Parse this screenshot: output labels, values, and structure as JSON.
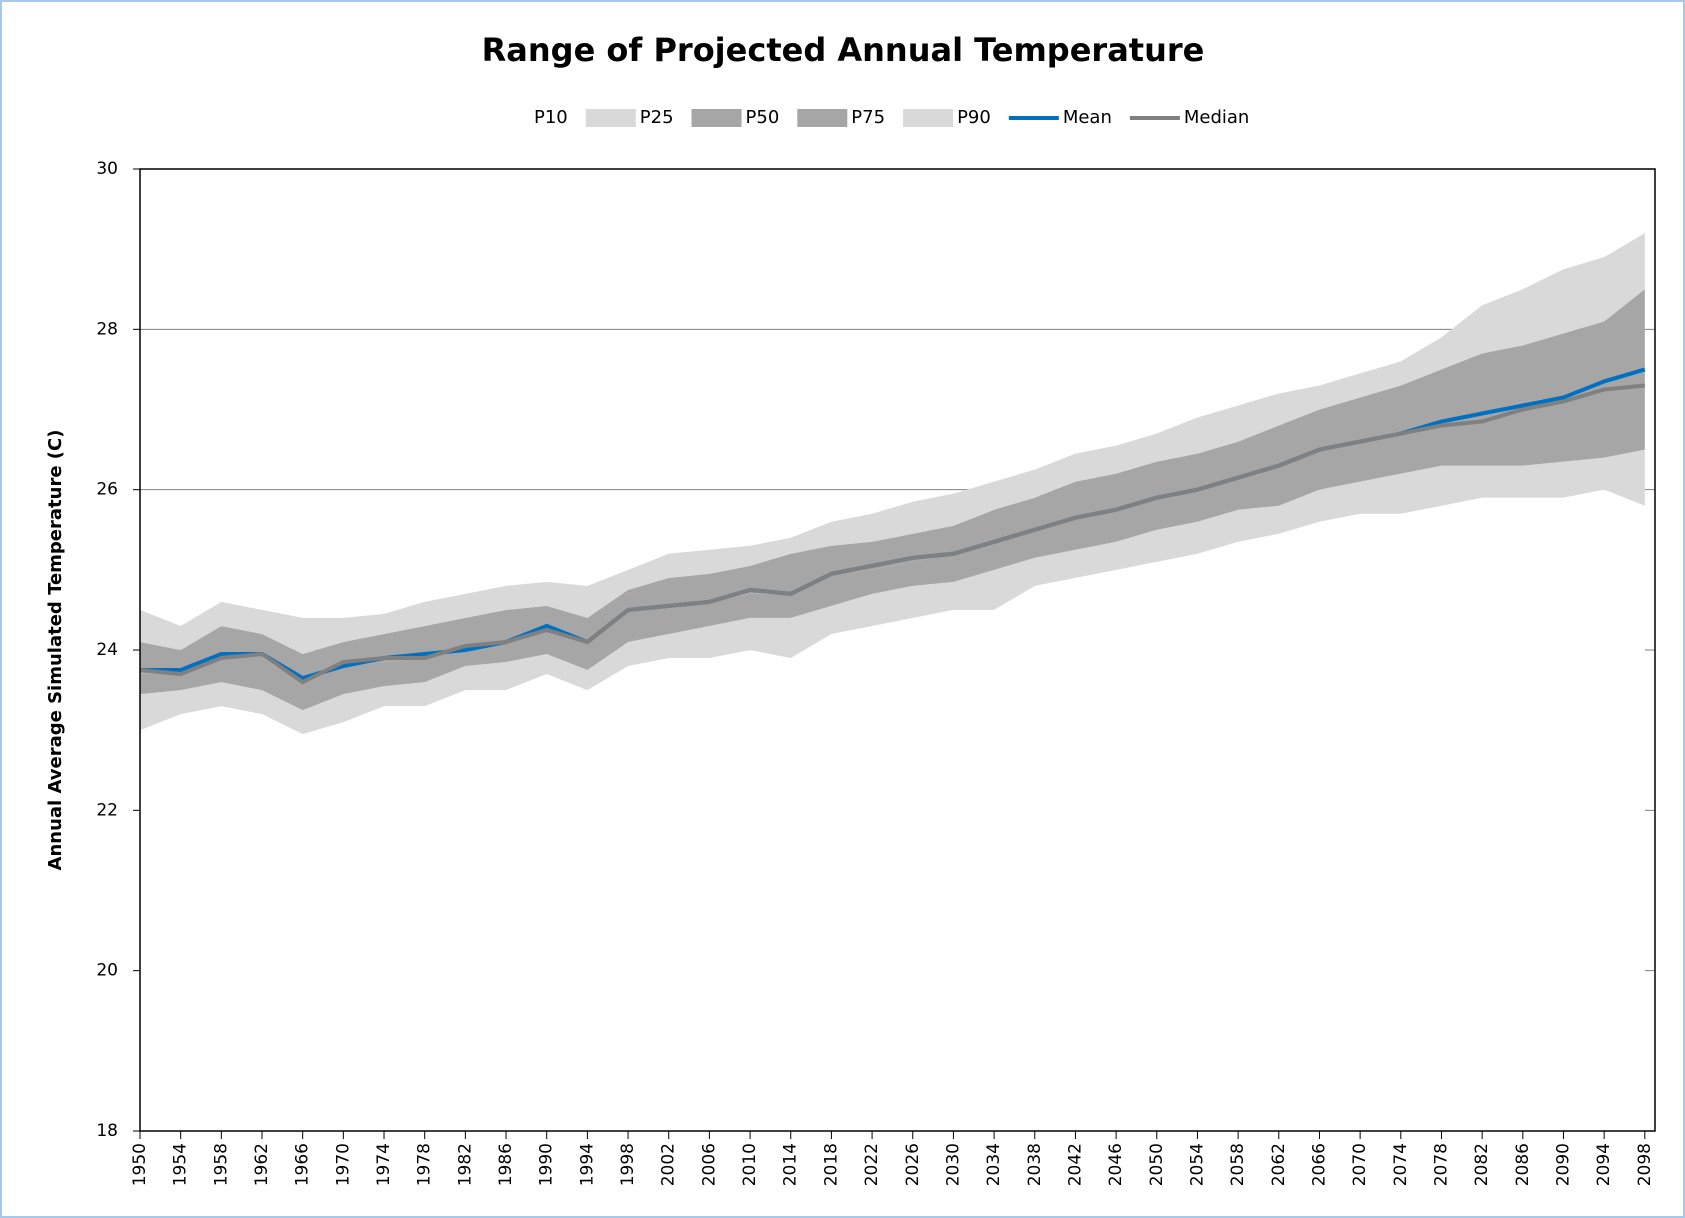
{
  "chart_data": {
    "type": "area-band",
    "title": "Range of Projected Annual Temperature",
    "y_label": "Annual Average Simulated Temperature (C)",
    "x": [
      1950,
      1954,
      1958,
      1962,
      1966,
      1970,
      1974,
      1978,
      1982,
      1986,
      1990,
      1994,
      1998,
      2002,
      2006,
      2010,
      2014,
      2018,
      2022,
      2026,
      2030,
      2034,
      2038,
      2042,
      2046,
      2050,
      2054,
      2058,
      2062,
      2066,
      2070,
      2074,
      2078,
      2082,
      2086,
      2090,
      2094,
      2098
    ],
    "series": [
      {
        "name": "P10",
        "color": "#ffffff",
        "values": [
          23.0,
          23.2,
          23.3,
          23.2,
          22.95,
          23.1,
          23.3,
          23.3,
          23.5,
          23.5,
          23.7,
          23.5,
          23.8,
          23.9,
          23.9,
          24.0,
          23.9,
          24.2,
          24.3,
          24.4,
          24.5,
          24.5,
          24.8,
          24.9,
          25.0,
          25.1,
          25.2,
          25.35,
          25.45,
          25.6,
          25.7,
          25.7,
          25.8,
          25.9,
          25.9,
          25.9,
          26.0,
          25.8
        ]
      },
      {
        "name": "P25",
        "color": "#d9d9d9",
        "values": [
          23.45,
          23.5,
          23.6,
          23.5,
          23.25,
          23.45,
          23.55,
          23.6,
          23.8,
          23.85,
          23.95,
          23.75,
          24.1,
          24.2,
          24.3,
          24.4,
          24.4,
          24.55,
          24.7,
          24.8,
          24.85,
          25.0,
          25.15,
          25.25,
          25.35,
          25.5,
          25.6,
          25.75,
          25.8,
          26.0,
          26.1,
          26.2,
          26.3,
          26.3,
          26.3,
          26.35,
          26.4,
          26.5
        ]
      },
      {
        "name": "P50",
        "color": "#a6a6a6",
        "values": [
          23.7,
          23.75,
          23.9,
          23.9,
          23.6,
          23.8,
          23.85,
          23.9,
          24.0,
          24.1,
          24.3,
          24.1,
          24.5,
          24.55,
          24.6,
          24.7,
          24.7,
          24.95,
          25.0,
          25.1,
          25.2,
          25.35,
          25.5,
          25.65,
          25.75,
          25.9,
          26.0,
          26.15,
          26.3,
          26.5,
          26.6,
          26.7,
          26.85,
          26.95,
          27.1,
          27.15,
          27.35,
          27.5
        ]
      },
      {
        "name": "P75",
        "color": "#a6a6a6",
        "values": [
          24.1,
          24.0,
          24.3,
          24.2,
          23.95,
          24.1,
          24.2,
          24.3,
          24.4,
          24.5,
          24.55,
          24.4,
          24.75,
          24.9,
          24.95,
          25.05,
          25.2,
          25.3,
          25.35,
          25.45,
          25.55,
          25.75,
          25.9,
          26.1,
          26.2,
          26.35,
          26.45,
          26.6,
          26.8,
          27.0,
          27.15,
          27.3,
          27.5,
          27.7,
          27.8,
          27.95,
          28.1,
          28.5
        ]
      },
      {
        "name": "P90",
        "color": "#d9d9d9",
        "values": [
          24.5,
          24.3,
          24.6,
          24.5,
          24.4,
          24.4,
          24.45,
          24.6,
          24.7,
          24.8,
          24.85,
          24.8,
          25.0,
          25.2,
          25.25,
          25.3,
          25.4,
          25.6,
          25.7,
          25.85,
          25.95,
          26.1,
          26.25,
          26.45,
          26.55,
          26.7,
          26.9,
          27.05,
          27.2,
          27.3,
          27.45,
          27.6,
          27.9,
          28.3,
          28.5,
          28.75,
          28.9,
          29.2
        ]
      },
      {
        "name": "Mean",
        "color": "#0070c0",
        "line": true,
        "values": [
          23.75,
          23.75,
          23.95,
          23.95,
          23.65,
          23.8,
          23.9,
          23.95,
          24.0,
          24.1,
          24.3,
          24.1,
          24.5,
          24.55,
          24.6,
          24.75,
          24.7,
          24.95,
          25.05,
          25.15,
          25.2,
          25.35,
          25.5,
          25.65,
          25.75,
          25.9,
          26.0,
          26.15,
          26.3,
          26.5,
          26.6,
          26.7,
          26.85,
          26.95,
          27.05,
          27.15,
          27.35,
          27.5
        ]
      },
      {
        "name": "Median",
        "color": "#808080",
        "line": true,
        "values": [
          23.75,
          23.7,
          23.9,
          23.95,
          23.6,
          23.85,
          23.9,
          23.9,
          24.05,
          24.1,
          24.25,
          24.1,
          24.5,
          24.55,
          24.6,
          24.75,
          24.7,
          24.95,
          25.05,
          25.15,
          25.2,
          25.35,
          25.5,
          25.65,
          25.75,
          25.9,
          26.0,
          26.15,
          26.3,
          26.5,
          26.6,
          26.7,
          26.8,
          26.85,
          27.0,
          27.1,
          27.25,
          27.3
        ]
      }
    ],
    "xlim": [
      1950,
      2099
    ],
    "xticks": [
      1950,
      1954,
      1958,
      1962,
      1966,
      1970,
      1974,
      1978,
      1982,
      1986,
      1990,
      1994,
      1998,
      2002,
      2006,
      2010,
      2014,
      2018,
      2022,
      2026,
      2030,
      2034,
      2038,
      2042,
      2046,
      2050,
      2054,
      2058,
      2062,
      2066,
      2070,
      2074,
      2078,
      2082,
      2086,
      2090,
      2094,
      2098
    ],
    "ylim": [
      18,
      30
    ],
    "yticks": [
      18,
      20,
      22,
      24,
      26,
      28,
      30
    ],
    "grid": true,
    "legend": "top"
  }
}
